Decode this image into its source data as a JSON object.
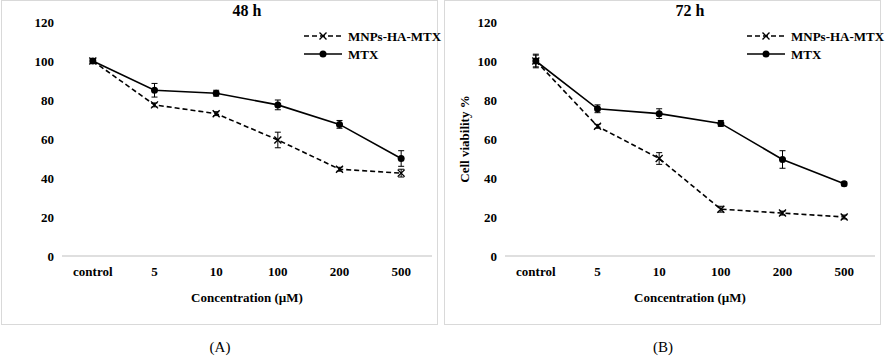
{
  "chart_data": [
    {
      "type": "line",
      "title": "48 h",
      "x_label": "Concentration (µM)",
      "annotations": [
        "(A)"
      ],
      "categories": [
        "control",
        "5",
        "10",
        "100",
        "200",
        "500"
      ],
      "series": [
        {
          "name": "MNPs-HA-MTX",
          "color": "#000000",
          "line_style": "dashed",
          "marker": "x",
          "values": [
            100,
            77.5,
            73,
            59.5,
            44.5,
            42.5
          ],
          "errors": [
            0.5,
            1,
            1,
            4,
            1,
            2
          ]
        },
        {
          "name": "MTX",
          "color": "#000000",
          "line_style": "solid",
          "marker": "circle",
          "values": [
            100,
            85,
            83.5,
            77.5,
            67.5,
            50
          ],
          "errors": [
            1,
            3.5,
            1.5,
            2.5,
            2,
            4
          ]
        }
      ],
      "ylim": [
        0,
        120
      ],
      "yticks": [
        0,
        20,
        40,
        60,
        80,
        100,
        120
      ],
      "legend": "top-right",
      "grid": false
    },
    {
      "type": "line",
      "title": "72 h",
      "x_label": "Concentration (µM)",
      "y_label": "Cell viability %",
      "annotations": [
        "(B)"
      ],
      "categories": [
        "control",
        "5",
        "10",
        "100",
        "200",
        "500"
      ],
      "series": [
        {
          "name": "MNPs-HA-MTX",
          "color": "#000000",
          "line_style": "dashed",
          "marker": "x",
          "values": [
            100,
            66.5,
            50,
            24,
            22,
            20
          ],
          "errors": [
            3,
            1,
            3,
            1.5,
            1,
            1
          ]
        },
        {
          "name": "MTX",
          "color": "#000000",
          "line_style": "solid",
          "marker": "circle",
          "values": [
            100,
            75.5,
            73,
            68,
            49.5,
            37
          ],
          "errors": [
            3.5,
            2,
            2.5,
            1.5,
            4.5,
            1
          ]
        }
      ],
      "ylim": [
        0,
        120
      ],
      "yticks": [
        0,
        20,
        40,
        60,
        80,
        100,
        120
      ],
      "legend": "top-right",
      "grid": false
    }
  ]
}
